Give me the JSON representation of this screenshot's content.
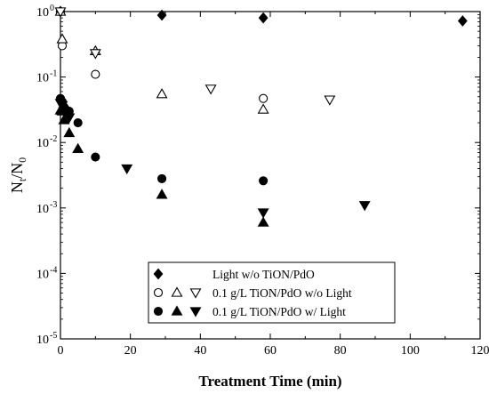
{
  "chart_data": {
    "type": "scatter",
    "title": "",
    "xlabel": "Treatment Time (min)",
    "ylabel": {
      "main": "N",
      "sub1": "t",
      "slash": "/N",
      "sub2": "0"
    },
    "xlim": [
      0,
      120
    ],
    "ylim": [
      1e-05,
      1
    ],
    "yscale": "log",
    "x_ticks": [
      0,
      20,
      40,
      60,
      80,
      100,
      120
    ],
    "y_ticks": [
      {
        "value": 1e-05,
        "base": "10",
        "exp": "-5"
      },
      {
        "value": 0.0001,
        "base": "10",
        "exp": "-4"
      },
      {
        "value": 0.001,
        "base": "10",
        "exp": "-3"
      },
      {
        "value": 0.01,
        "base": "10",
        "exp": "-2"
      },
      {
        "value": 0.1,
        "base": "10",
        "exp": "-1"
      },
      {
        "value": 1,
        "base": "10",
        "exp": "0"
      }
    ],
    "grid": false,
    "legend_position": "bottom-center",
    "series": [
      {
        "name": "Light w/o TiON/PdO",
        "marker": "diamond",
        "filled": true,
        "color": "#000000",
        "x": [
          0,
          29,
          58,
          115
        ],
        "y": [
          1.0,
          0.88,
          0.8,
          0.72
        ]
      },
      {
        "name": "",
        "marker": "circle",
        "filled": false,
        "color": "#000000",
        "x": [
          0,
          0.5,
          10,
          58
        ],
        "y": [
          1.0,
          0.3,
          0.11,
          0.047
        ]
      },
      {
        "name": "",
        "marker": "triangle-up",
        "filled": false,
        "color": "#000000",
        "x": [
          0,
          0.5,
          10,
          29,
          58
        ],
        "y": [
          1.0,
          0.38,
          0.25,
          0.055,
          0.032
        ]
      },
      {
        "name": "0.1 g/L TiON/PdO w/o Light",
        "marker": "triangle-down",
        "filled": false,
        "color": "#000000",
        "x": [
          0,
          10,
          43,
          77
        ],
        "y": [
          1.0,
          0.23,
          0.066,
          0.045
        ]
      },
      {
        "name": "",
        "marker": "circle",
        "filled": true,
        "color": "#000000",
        "x": [
          0,
          0.5,
          1,
          1.5,
          2.5,
          5,
          10,
          29,
          58
        ],
        "y": [
          0.047,
          0.042,
          0.035,
          0.032,
          0.03,
          0.02,
          0.006,
          0.0028,
          0.0026
        ]
      },
      {
        "name": "",
        "marker": "triangle-up",
        "filled": true,
        "color": "#000000",
        "x": [
          0,
          0.5,
          1,
          2.5,
          5,
          29,
          58
        ],
        "y": [
          0.031,
          0.03,
          0.022,
          0.014,
          0.008,
          0.0016,
          0.0006
        ]
      },
      {
        "name": "0.1 g/L TiON/PdO w/ Light",
        "marker": "triangle-down",
        "filled": true,
        "color": "#000000",
        "x": [
          0,
          0.5,
          1,
          2.5,
          19,
          58,
          87
        ],
        "y": [
          0.04,
          0.037,
          0.03,
          0.024,
          0.004,
          0.00085,
          0.0011
        ]
      }
    ]
  }
}
